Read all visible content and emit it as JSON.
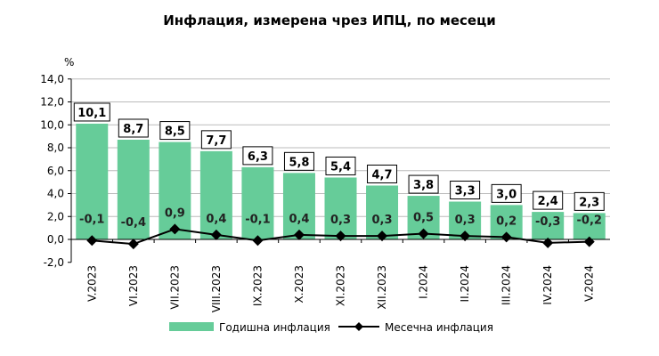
{
  "chart_data": {
    "type": "bar+line",
    "title": "Инфлация, измерена чрез ИПЦ, по месеци",
    "ylabel": "%",
    "ylim": [
      -2,
      14
    ],
    "yticks": [
      "-2,0",
      "0,0",
      "2,0",
      "4,0",
      "6,0",
      "8,0",
      "10,0",
      "12,0",
      "14,0"
    ],
    "ytick_values": [
      -2,
      0,
      2,
      4,
      6,
      8,
      10,
      12,
      14
    ],
    "grid": true,
    "legend_placement": "bottom",
    "categories": [
      "V.2023",
      "VI.2023",
      "VII.2023",
      "VIII.2023",
      "IX.2023",
      "X.2023",
      "XI.2023",
      "XII.2023",
      "I.2024",
      "II.2024",
      "III.2024",
      "IV.2024",
      "V.2024"
    ],
    "series": [
      {
        "name": "Годишна инфлация",
        "type": "bar",
        "color": "#66cc99",
        "values": [
          10.1,
          8.7,
          8.5,
          7.7,
          6.3,
          5.8,
          5.4,
          4.7,
          3.8,
          3.3,
          3.0,
          2.4,
          2.3
        ],
        "labels": [
          "10,1",
          "8,7",
          "8,5",
          "7,7",
          "6,3",
          "5,8",
          "5,4",
          "4,7",
          "3,8",
          "3,3",
          "3,0",
          "2,4",
          "2,3"
        ]
      },
      {
        "name": "Месечна инфлация",
        "type": "line",
        "color": "#000000",
        "marker": "diamond",
        "values": [
          -0.1,
          -0.4,
          0.9,
          0.4,
          -0.1,
          0.4,
          0.3,
          0.3,
          0.5,
          0.3,
          0.2,
          -0.3,
          -0.2
        ],
        "labels": [
          "-0,1",
          "-0,4",
          "0,9",
          "0,4",
          "-0,1",
          "0,4",
          "0,3",
          "0,3",
          "0,5",
          "0,3",
          "0,2",
          "-0,3",
          "-0,2"
        ]
      }
    ]
  }
}
